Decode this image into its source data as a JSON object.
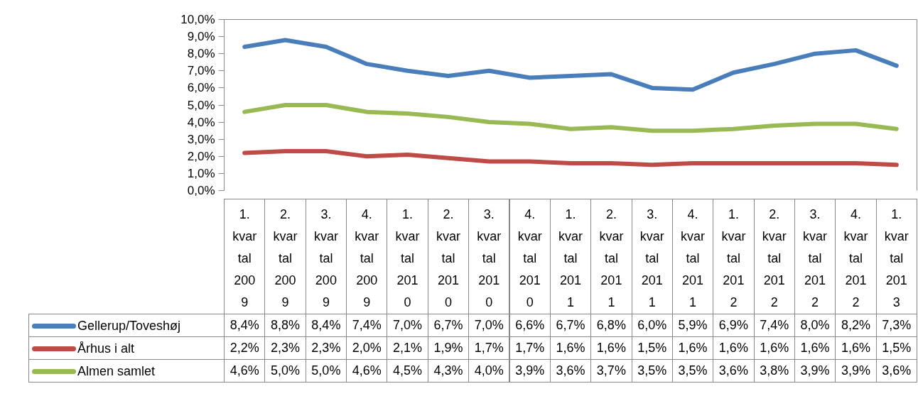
{
  "chart_data": {
    "type": "line",
    "categories": [
      "1. kvartal 2009",
      "2. kvartal 2009",
      "3. kvartal 2009",
      "4. kvartal 2009",
      "1. kvartal 2010",
      "2. kvartal 2010",
      "3. kvartal 2010",
      "4. kvartal 2010",
      "1. kvartal 2011",
      "2. kvartal 2011",
      "3. kvartal 2011",
      "4. kvartal 2011",
      "1. kvartal 2012",
      "2. kvartal 2012",
      "3. kvartal 2012",
      "4. kvartal 2012",
      "1. kvartal 2013"
    ],
    "series": [
      {
        "name": "Gellerup/Toveshøj",
        "color": "#4a7ebb",
        "values": [
          8.4,
          8.8,
          8.4,
          7.4,
          7.0,
          6.7,
          7.0,
          6.6,
          6.7,
          6.8,
          6.0,
          5.9,
          6.9,
          7.4,
          8.0,
          8.2,
          7.3
        ],
        "value_labels": [
          "8,4%",
          "8,8%",
          "8,4%",
          "7,4%",
          "7,0%",
          "6,7%",
          "7,0%",
          "6,6%",
          "6,7%",
          "6,8%",
          "6,0%",
          "5,9%",
          "6,9%",
          "7,4%",
          "8,0%",
          "8,2%",
          "7,3%"
        ]
      },
      {
        "name": "Århus i alt",
        "color": "#be4b48",
        "values": [
          2.2,
          2.3,
          2.3,
          2.0,
          2.1,
          1.9,
          1.7,
          1.7,
          1.6,
          1.6,
          1.5,
          1.6,
          1.6,
          1.6,
          1.6,
          1.6,
          1.5
        ],
        "value_labels": [
          "2,2%",
          "2,3%",
          "2,3%",
          "2,0%",
          "2,1%",
          "1,9%",
          "1,7%",
          "1,7%",
          "1,6%",
          "1,6%",
          "1,5%",
          "1,6%",
          "1,6%",
          "1,6%",
          "1,6%",
          "1,6%",
          "1,5%"
        ]
      },
      {
        "name": "Almen samlet",
        "color": "#98b954",
        "values": [
          4.6,
          5.0,
          5.0,
          4.6,
          4.5,
          4.3,
          4.0,
          3.9,
          3.6,
          3.7,
          3.5,
          3.5,
          3.6,
          3.8,
          3.9,
          3.9,
          3.6
        ],
        "value_labels": [
          "4,6%",
          "5,0%",
          "5,0%",
          "4,6%",
          "4,5%",
          "4,3%",
          "4,0%",
          "3,9%",
          "3,6%",
          "3,7%",
          "3,5%",
          "3,5%",
          "3,6%",
          "3,8%",
          "3,9%",
          "3,9%",
          "3,6%"
        ]
      }
    ],
    "ylim": [
      0,
      10
    ],
    "yticks": [
      {
        "value": 0,
        "label": "0,0%"
      },
      {
        "value": 1,
        "label": "1,0%"
      },
      {
        "value": 2,
        "label": "2,0%"
      },
      {
        "value": 3,
        "label": "3,0%"
      },
      {
        "value": 4,
        "label": "4,0%"
      },
      {
        "value": 5,
        "label": "5,0%"
      },
      {
        "value": 6,
        "label": "6,0%"
      },
      {
        "value": 7,
        "label": "7,0%"
      },
      {
        "value": 8,
        "label": "8,0%"
      },
      {
        "value": 9,
        "label": "9,0%"
      },
      {
        "value": 10,
        "label": "10,0%"
      }
    ],
    "grid": false,
    "legend": "bottom",
    "marker": "none",
    "line_style": "solid"
  }
}
